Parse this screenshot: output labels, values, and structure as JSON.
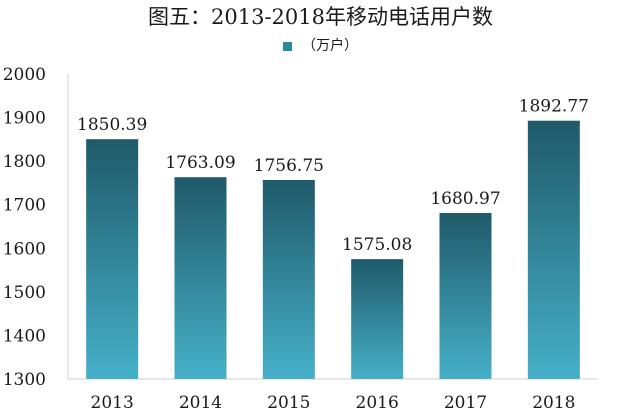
{
  "title": "图五：2013-2018年移动电话用户数",
  "legend": {
    "label": "（万户）",
    "color": "#2a8a9e"
  },
  "colors": {
    "bar_top": "#1f5a6a",
    "bar_bottom": "#46b0c8",
    "axis": "#d0d0d0"
  },
  "chart_data": {
    "type": "bar",
    "categories": [
      "2013",
      "2014",
      "2015",
      "2016",
      "2017",
      "2018"
    ],
    "series": [
      {
        "name": "（万户）",
        "values": [
          1850.39,
          1763.09,
          1756.75,
          1575.08,
          1680.97,
          1892.77
        ]
      }
    ],
    "data_labels": [
      "1850.39",
      "1763.09",
      "1756.75",
      "1575.08",
      "1680.97",
      "1892.77"
    ],
    "yticks": [
      "1300",
      "1400",
      "1500",
      "1600",
      "1700",
      "1800",
      "1900",
      "2000"
    ],
    "ylim": [
      1300,
      2000
    ],
    "xlabel": "",
    "ylabel": "",
    "grid": false,
    "legend_position": "top"
  }
}
